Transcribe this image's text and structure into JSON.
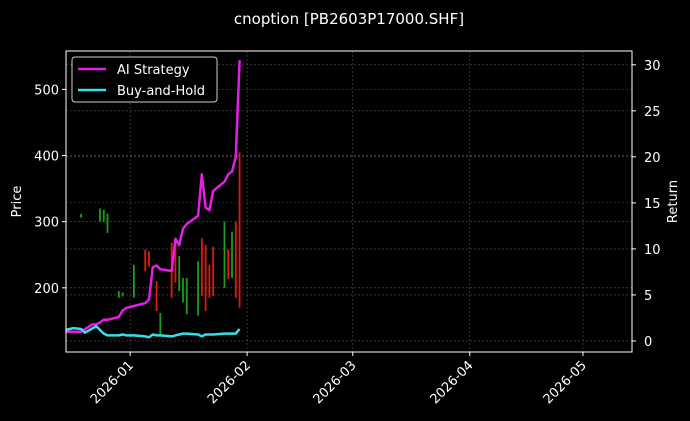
{
  "chart_data": {
    "type": "line",
    "title": "cnoption [PB2603P17000.SHF]",
    "ylabel": "Price",
    "y2label": "Return",
    "xlim": [
      "2025-12-15",
      "2026-05-14"
    ],
    "ylim": [
      103,
      558
    ],
    "y2lim": [
      -1.2,
      31.5
    ],
    "grid": true,
    "legend_position": "top-left",
    "x_ticks": [
      "2026-01",
      "2026-02",
      "2026-03",
      "2026-04",
      "2026-05"
    ],
    "y_ticks": [
      200,
      300,
      400,
      500
    ],
    "y2_ticks": [
      0,
      5,
      10,
      15,
      20,
      25,
      30
    ],
    "colors": {
      "background": "#000000",
      "strategy": "#e51ee5",
      "buy_hold": "#35e0e8",
      "up_candle": "#1c9e1c",
      "down_candle": "#e01b0e",
      "grid": "#555555",
      "axis": "#ffffff"
    },
    "series": [
      {
        "name": "AI Strategy",
        "axis": "right",
        "x": [
          "2025-12-15",
          "2025-12-17",
          "2025-12-19",
          "2025-12-22",
          "2025-12-23",
          "2025-12-24",
          "2025-12-25",
          "2025-12-26",
          "2025-12-29",
          "2025-12-30",
          "2025-12-31",
          "2026-01-02",
          "2026-01-05",
          "2026-01-06",
          "2026-01-07",
          "2026-01-08",
          "2026-01-09",
          "2026-01-12",
          "2026-01-13",
          "2026-01-14",
          "2026-01-15",
          "2026-01-16",
          "2026-01-19",
          "2026-01-20",
          "2026-01-21",
          "2026-01-22",
          "2026-01-23",
          "2026-01-26",
          "2026-01-27",
          "2026-01-28",
          "2026-01-29",
          "2026-01-30"
        ],
        "y": [
          1.0,
          1.0,
          1.0,
          1.8,
          1.8,
          2.0,
          2.3,
          2.3,
          2.6,
          3.3,
          3.6,
          3.8,
          4.1,
          4.5,
          8.0,
          8.2,
          7.8,
          7.6,
          11.1,
          10.4,
          12.2,
          12.7,
          13.6,
          18.1,
          14.5,
          14.2,
          16.3,
          17.3,
          18.1,
          18.4,
          20.0,
          30.5
        ]
      },
      {
        "name": "Buy-and-Hold",
        "axis": "right",
        "x": [
          "2025-12-15",
          "2025-12-17",
          "2025-12-19",
          "2025-12-20",
          "2025-12-23",
          "2025-12-25",
          "2025-12-26",
          "2025-12-29",
          "2025-12-30",
          "2025-12-31",
          "2026-01-02",
          "2026-01-05",
          "2026-01-06",
          "2026-01-07",
          "2026-01-08",
          "2026-01-09",
          "2026-01-12",
          "2026-01-13",
          "2026-01-14",
          "2026-01-15",
          "2026-01-16",
          "2026-01-19",
          "2026-01-20",
          "2026-01-21",
          "2026-01-22",
          "2026-01-23",
          "2026-01-26",
          "2026-01-27",
          "2026-01-28",
          "2026-01-29",
          "2026-01-30"
        ],
        "y": [
          1.2,
          1.4,
          1.3,
          0.9,
          1.6,
          0.8,
          0.6,
          0.6,
          0.7,
          0.6,
          0.6,
          0.5,
          0.4,
          0.7,
          0.6,
          0.6,
          0.5,
          0.6,
          0.7,
          0.8,
          0.8,
          0.7,
          0.5,
          0.7,
          0.7,
          0.7,
          0.8,
          0.8,
          0.8,
          0.8,
          1.3
        ]
      }
    ],
    "candles": [
      {
        "date": "2025-12-19",
        "low": 306,
        "high": 312,
        "up": true
      },
      {
        "date": "2025-12-24",
        "low": 300,
        "high": 320,
        "up": true
      },
      {
        "date": "2025-12-25",
        "low": 300,
        "high": 318,
        "up": true
      },
      {
        "date": "2025-12-26",
        "low": 283,
        "high": 312,
        "up": true
      },
      {
        "date": "2025-12-29",
        "low": 185,
        "high": 195,
        "up": true
      },
      {
        "date": "2025-12-30",
        "low": 187,
        "high": 193,
        "up": true
      },
      {
        "date": "2026-01-02",
        "low": 185,
        "high": 235,
        "up": true
      },
      {
        "date": "2026-01-05",
        "low": 225,
        "high": 258,
        "up": false
      },
      {
        "date": "2026-01-06",
        "low": 232,
        "high": 255,
        "up": false
      },
      {
        "date": "2026-01-08",
        "low": 165,
        "high": 210,
        "up": false
      },
      {
        "date": "2026-01-09",
        "low": 128,
        "high": 162,
        "up": true
      },
      {
        "date": "2026-01-12",
        "low": 185,
        "high": 268,
        "up": false
      },
      {
        "date": "2026-01-13",
        "low": 208,
        "high": 268,
        "up": false
      },
      {
        "date": "2026-01-14",
        "low": 195,
        "high": 248,
        "up": true
      },
      {
        "date": "2026-01-15",
        "low": 178,
        "high": 215,
        "up": true
      },
      {
        "date": "2026-01-16",
        "low": 160,
        "high": 215,
        "up": true
      },
      {
        "date": "2026-01-19",
        "low": 158,
        "high": 240,
        "up": true
      },
      {
        "date": "2026-01-20",
        "low": 188,
        "high": 275,
        "up": false
      },
      {
        "date": "2026-01-21",
        "low": 165,
        "high": 265,
        "up": false
      },
      {
        "date": "2026-01-22",
        "low": 185,
        "high": 235,
        "up": false
      },
      {
        "date": "2026-01-23",
        "low": 188,
        "high": 262,
        "up": false
      },
      {
        "date": "2026-01-26",
        "low": 200,
        "high": 300,
        "up": true
      },
      {
        "date": "2026-01-27",
        "low": 213,
        "high": 258,
        "up": false
      },
      {
        "date": "2026-01-28",
        "low": 215,
        "high": 285,
        "up": true
      },
      {
        "date": "2026-01-29",
        "low": 185,
        "high": 300,
        "up": false
      },
      {
        "date": "2026-01-30",
        "low": 170,
        "high": 405,
        "up": false
      }
    ]
  }
}
